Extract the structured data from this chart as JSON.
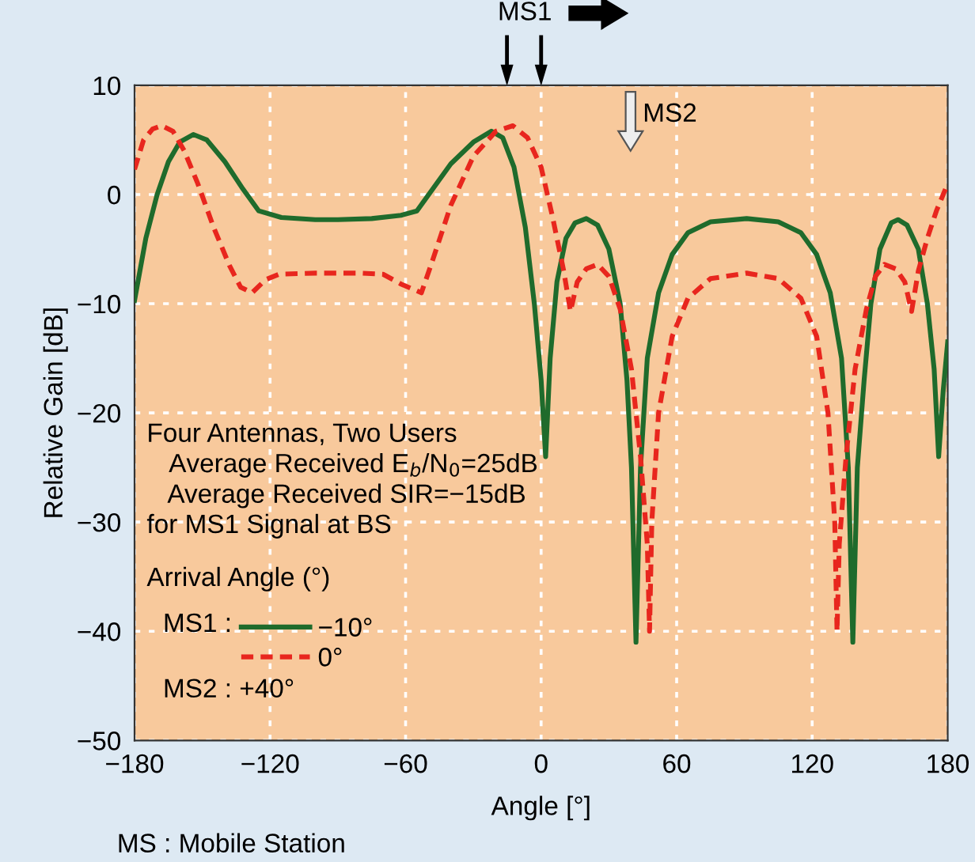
{
  "chart_data": {
    "type": "line",
    "xlabel": "Angle [°]",
    "ylabel": "Relative Gain [dB]",
    "series": [
      {
        "name": "−10°",
        "color": "#1f6b2c",
        "line_style": "solid",
        "x": [
          -180,
          -175,
          -170,
          -165,
          -160,
          -154,
          -148,
          -140,
          -132,
          -125,
          -115,
          -100,
          -90,
          -75,
          -62,
          -55,
          -48,
          -40,
          -30,
          -22,
          -17,
          -12,
          -7,
          -3,
          0,
          2,
          4,
          7,
          11,
          15,
          20,
          25,
          30,
          35,
          38,
          40,
          42,
          44,
          47,
          52,
          58,
          65,
          75,
          91,
          105,
          115,
          122,
          128,
          133,
          136,
          138,
          140,
          143,
          146,
          150,
          155,
          158,
          162,
          167,
          171,
          174,
          176,
          178,
          180
        ],
        "values": [
          -9.7,
          -4,
          0,
          3,
          4.8,
          5.5,
          5,
          3,
          0.5,
          -1.5,
          -2.1,
          -2.3,
          -2.3,
          -2.2,
          -1.9,
          -1.5,
          0.5,
          2.8,
          4.8,
          5.8,
          5.2,
          2.5,
          -3,
          -10,
          -17,
          -24,
          -15,
          -8,
          -4,
          -2.6,
          -2.2,
          -2.8,
          -5,
          -10,
          -17,
          -25,
          -41,
          -25,
          -15,
          -9,
          -5.5,
          -3.5,
          -2.5,
          -2.2,
          -2.5,
          -3.5,
          -5.5,
          -9,
          -15,
          -25,
          -41,
          -25,
          -17,
          -10,
          -5,
          -2.6,
          -2.3,
          -2.8,
          -5,
          -10,
          -16,
          -24,
          -18,
          -13.5
        ]
      },
      {
        "name": "0°",
        "color": "#e8261e",
        "line_style": "dashed",
        "x": [
          -180,
          -176,
          -172,
          -168,
          -163,
          -158,
          -152,
          -145,
          -138,
          -133,
          -128,
          -122,
          -116,
          -100,
          -93,
          -80,
          -70,
          -62,
          -53,
          -48,
          -40,
          -30,
          -20,
          -12.5,
          -6,
          0,
          5,
          10,
          13,
          16,
          20,
          25,
          30,
          35,
          40,
          44,
          47,
          48,
          49,
          52,
          58,
          65,
          75,
          91,
          105,
          115,
          122,
          127,
          130,
          131,
          132,
          135,
          139,
          144,
          148,
          152,
          157,
          161,
          164,
          167,
          171,
          175,
          179
        ],
        "values": [
          2.3,
          5,
          6,
          6.3,
          5.8,
          4,
          1,
          -3,
          -6.5,
          -8.5,
          -9,
          -7.8,
          -7.3,
          -7.2,
          -7.2,
          -7.2,
          -7.3,
          -8.2,
          -9,
          -6,
          -1,
          3.5,
          5.8,
          6.3,
          5.2,
          2.5,
          -2,
          -7,
          -10.7,
          -8,
          -6.8,
          -6.4,
          -7.5,
          -10.5,
          -16,
          -24,
          -32,
          -40,
          -30,
          -20,
          -13,
          -9.5,
          -7.7,
          -7.2,
          -7.7,
          -9.5,
          -13,
          -20,
          -30,
          -40,
          -32,
          -24,
          -16,
          -10.5,
          -7.5,
          -6.4,
          -6.8,
          -8,
          -10.7,
          -7,
          -4,
          -1.5,
          0.5
        ]
      }
    ],
    "xlim": [
      -180,
      180
    ],
    "ylim": [
      -50,
      10
    ],
    "xticks": [
      {
        "value": -180,
        "label": "−180"
      },
      {
        "value": -120,
        "label": "−120"
      },
      {
        "value": -60,
        "label": "−60"
      },
      0,
      60,
      120,
      180
    ],
    "yticks": [
      {
        "value": -50,
        "label": "−50"
      },
      {
        "value": -40,
        "label": "−40"
      },
      {
        "value": -30,
        "label": "−30"
      },
      {
        "value": -20,
        "label": "−20"
      },
      {
        "value": -10,
        "label": "−10"
      },
      0,
      10
    ],
    "grid": true,
    "legend": "bottom left",
    "marker": "none",
    "annotations": [
      "MS1",
      "MS2",
      "Four Antennas, Two Users\n   Average Received E$_{b}$/N$_{0}$=25dB\n   Average Received SIR=−15dB\nfor MS1 Signal at BS",
      "Arrival Angle (°)",
      "MS1 :",
      "MS2 : +40°",
      "MS : Mobile Station"
    ]
  }
}
